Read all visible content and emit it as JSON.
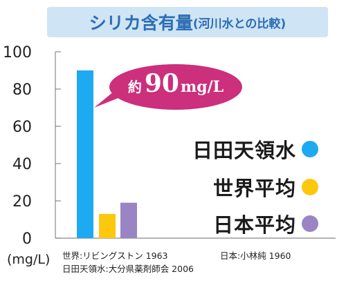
{
  "title": {
    "main": "シリカ含有量",
    "sub": "(河川水との比較)"
  },
  "chart_data": {
    "type": "bar",
    "categories": [
      "日田天領水",
      "世界平均",
      "日本平均"
    ],
    "values": [
      90,
      13,
      19
    ],
    "colors": [
      "#1eaaf1",
      "#fcc80e",
      "#9a84c4"
    ],
    "ylim": [
      0,
      100
    ],
    "yticks": [
      0,
      20,
      40,
      60,
      80,
      100
    ],
    "ylabel": "(mg/L)",
    "grid": false,
    "legend_placement": "right",
    "annotation": {
      "prefix": "約",
      "number": "90",
      "unit": "mg/L",
      "color": "#cc2f7b"
    }
  },
  "sources": {
    "world": "世界:リビングストン 1963",
    "japan": "日本:小林純 1960",
    "hita": "日田天領水:大分県薬剤師会 2006"
  }
}
